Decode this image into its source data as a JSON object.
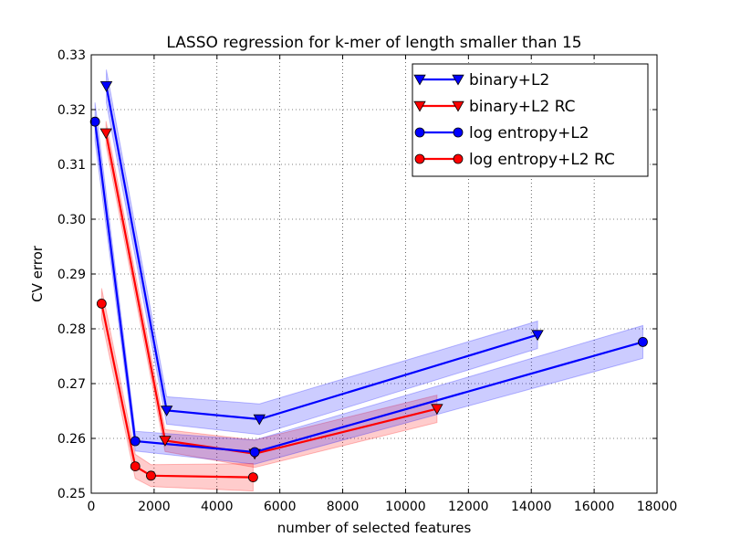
{
  "chart_data": {
    "type": "line",
    "title": "LASSO regression for k-mer of length smaller than 15",
    "xlabel": "number of selected features",
    "ylabel": "CV error",
    "xlim": [
      0,
      18000
    ],
    "ylim": [
      0.25,
      0.33
    ],
    "xticks": [
      0,
      2000,
      4000,
      6000,
      8000,
      10000,
      12000,
      14000,
      16000,
      18000
    ],
    "xtick_labels": [
      "0",
      "2000",
      "4000",
      "6000",
      "8000",
      "10000",
      "12000",
      "14000",
      "16000",
      "18000"
    ],
    "yticks": [
      0.25,
      0.26,
      0.27,
      0.28,
      0.29,
      0.3,
      0.31,
      0.32,
      0.33
    ],
    "ytick_labels": [
      "0.25",
      "0.26",
      "0.27",
      "0.28",
      "0.29",
      "0.30",
      "0.31",
      "0.32",
      "0.33"
    ],
    "grid": true,
    "legend_position": "top-right",
    "series": [
      {
        "name": "binary+L2",
        "color": "#0000ff",
        "marker": "triangle-down",
        "x": [
          480,
          2400,
          5350,
          14200
        ],
        "y": [
          0.3243,
          0.2651,
          0.2635,
          0.2789
        ],
        "band": [
          0.003,
          0.0025,
          0.0028,
          0.0025
        ]
      },
      {
        "name": "binary+L2 RC",
        "color": "#ff0000",
        "marker": "triangle-down",
        "x": [
          470,
          2350,
          5200,
          11000
        ],
        "y": [
          0.3157,
          0.2596,
          0.2572,
          0.2654
        ],
        "band": [
          0.0022,
          0.002,
          0.0025,
          0.0025
        ]
      },
      {
        "name": "log entropy+L2",
        "color": "#0000ff",
        "marker": "circle",
        "x": [
          120,
          1400,
          5200,
          17550
        ],
        "y": [
          0.3178,
          0.2595,
          0.2575,
          0.2776
        ],
        "band": [
          0.0035,
          0.0018,
          0.0022,
          0.003
        ]
      },
      {
        "name": "log entropy+L2 RC",
        "color": "#ff0000",
        "marker": "circle",
        "x": [
          330,
          1400,
          1900,
          5150
        ],
        "y": [
          0.2846,
          0.2549,
          0.2532,
          0.2529
        ],
        "band": [
          0.0028,
          0.0022,
          0.002,
          0.0025
        ]
      }
    ]
  }
}
